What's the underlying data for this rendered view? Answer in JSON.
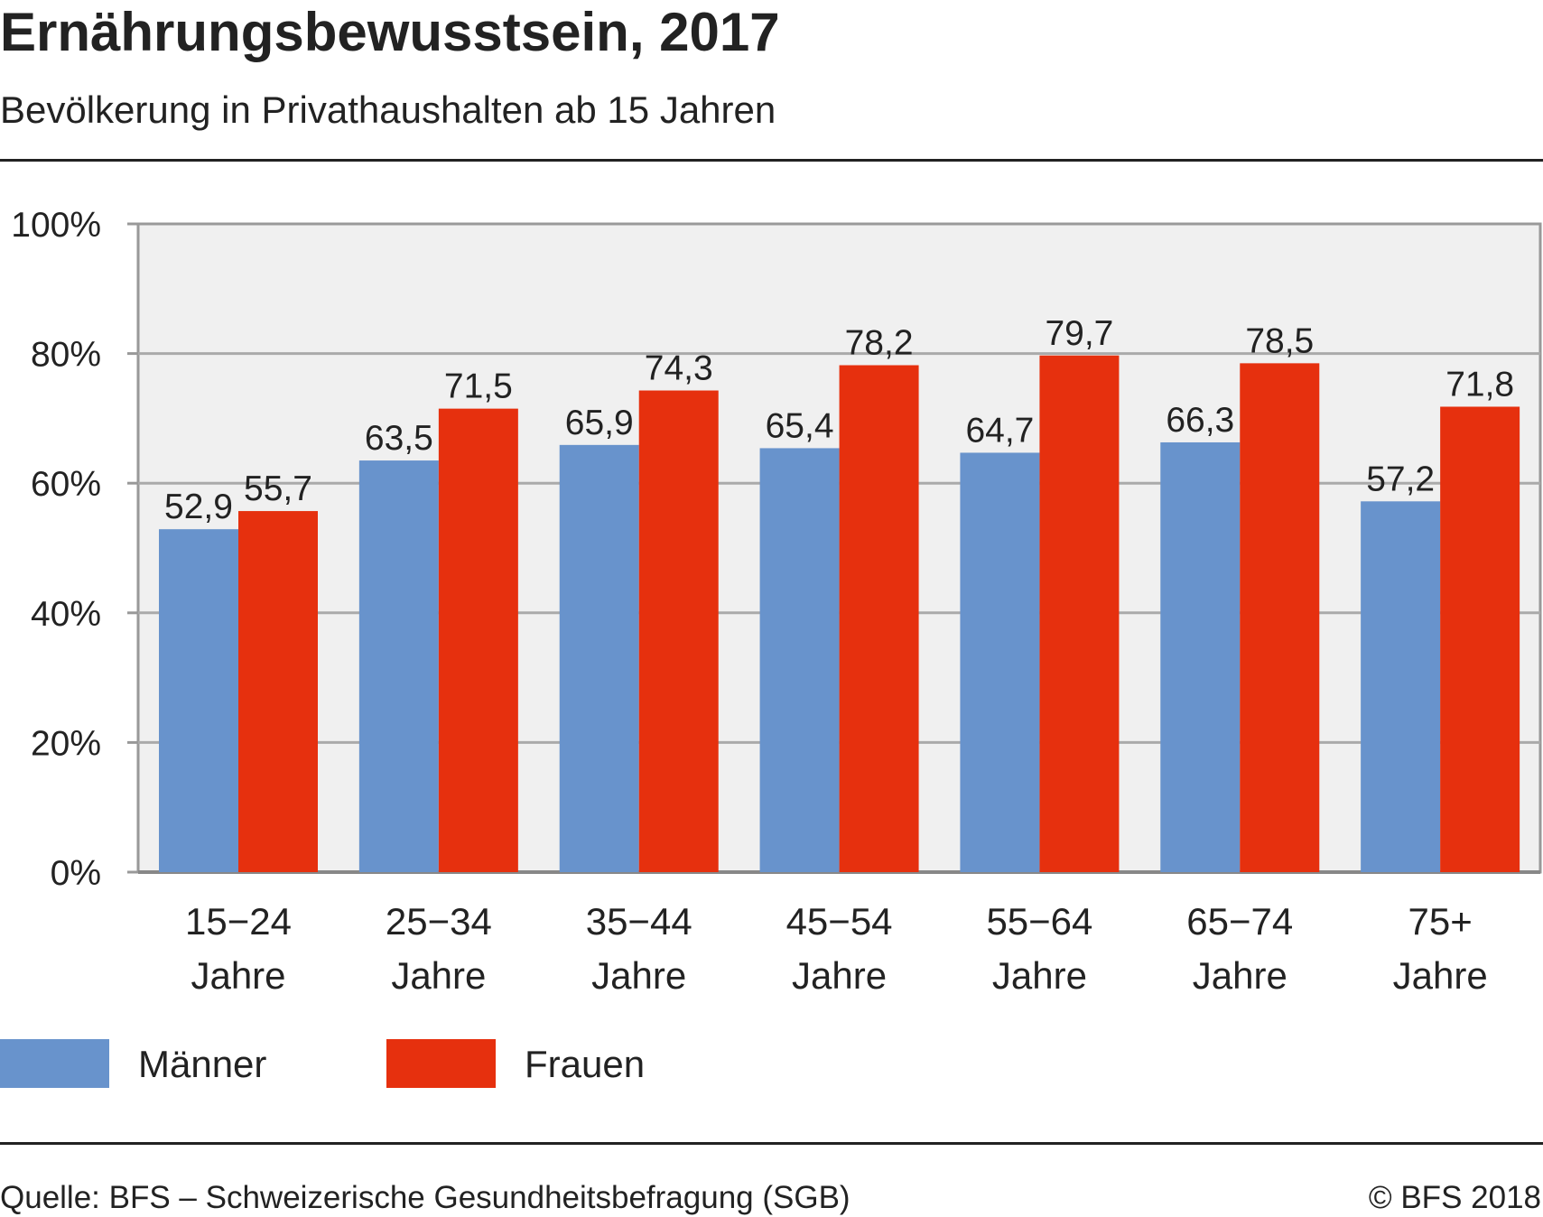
{
  "chart_data": {
    "type": "bar",
    "title": "Ernährungsbewusstsein, 2017",
    "subtitle": "Bevölkerung in Privathaushalten ab 15 Jahren",
    "categories": [
      [
        "15−24",
        "Jahre"
      ],
      [
        "25−34",
        "Jahre"
      ],
      [
        "35−44",
        "Jahre"
      ],
      [
        "45−54",
        "Jahre"
      ],
      [
        "55−64",
        "Jahre"
      ],
      [
        "65−74",
        "Jahre"
      ],
      [
        "75+",
        "Jahre"
      ]
    ],
    "series": [
      {
        "name": "Männer",
        "color": "#6893cc",
        "values": [
          52.9,
          63.5,
          65.9,
          65.4,
          64.7,
          66.3,
          57.2
        ],
        "labels": [
          "52,9",
          "63,5",
          "65,9",
          "65,4",
          "64,7",
          "66,3",
          "57,2"
        ]
      },
      {
        "name": "Frauen",
        "color": "#e6300e",
        "values": [
          55.7,
          71.5,
          74.3,
          78.2,
          79.7,
          78.5,
          71.8
        ],
        "labels": [
          "55,7",
          "71,5",
          "74,3",
          "78,2",
          "79,7",
          "78,5",
          "71,8"
        ]
      }
    ],
    "ylim": [
      0,
      100
    ],
    "yticks": [
      0,
      20,
      40,
      60,
      80,
      100
    ],
    "ytick_labels": [
      "0%",
      "20%",
      "40%",
      "60%",
      "80%",
      "100%"
    ],
    "grid": true,
    "legend_position": "bottom-left",
    "xlabel": "",
    "ylabel": ""
  },
  "footer": {
    "source": "Quelle: BFS – Schweizerische Gesundheitsbefragung (SGB)",
    "copyright": "© BFS 2018"
  }
}
